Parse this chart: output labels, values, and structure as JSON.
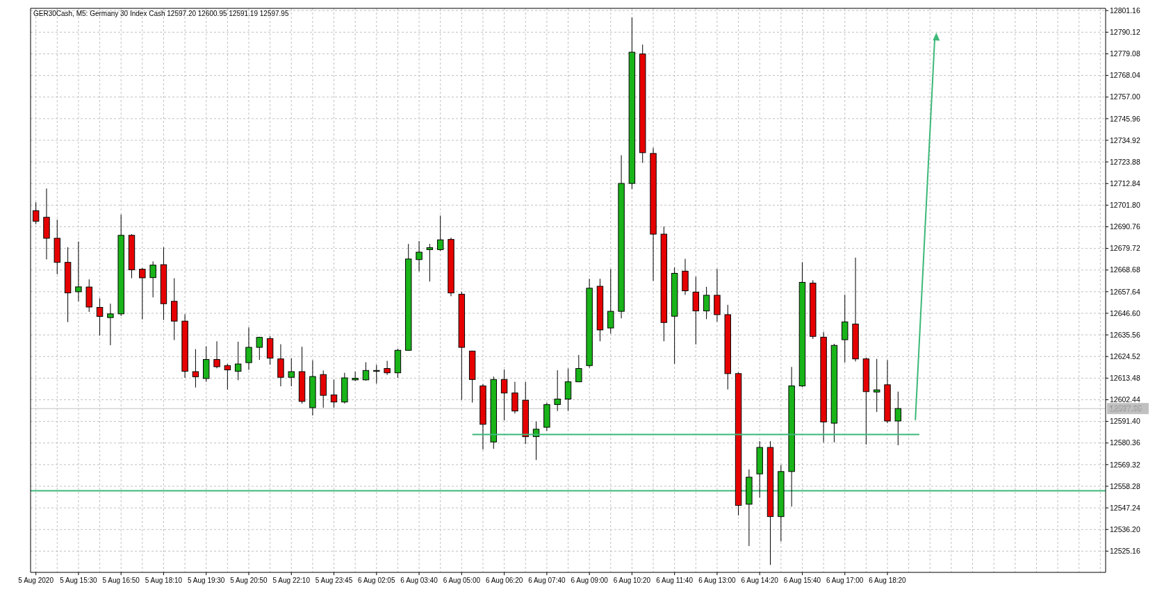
{
  "chart_data": {
    "type": "candlestick",
    "title": "GER30Cash, M5:  Germany 30 Index Cash  12597.20 12600.95 12591.19 12597.95",
    "categories": [
      "5 Aug 2020",
      null,
      null,
      null,
      "5 Aug 15:30",
      null,
      null,
      null,
      "5 Aug 16:50",
      null,
      null,
      null,
      "5 Aug 18:10",
      null,
      null,
      null,
      "5 Aug 19:30",
      null,
      null,
      null,
      "5 Aug 20:50",
      null,
      null,
      null,
      "5 Aug 22:10",
      null,
      null,
      null,
      "5 Aug 23:45",
      null,
      null,
      null,
      "6 Aug 02:05",
      null,
      null,
      null,
      "6 Aug 03:40",
      null,
      null,
      null,
      "6 Aug 05:00",
      null,
      null,
      null,
      "6 Aug 06:20",
      null,
      null,
      null,
      "6 Aug 07:40",
      null,
      null,
      null,
      "6 Aug 09:00",
      null,
      null,
      null,
      "6 Aug 10:20",
      null,
      null,
      null,
      "6 Aug 11:40",
      null,
      null,
      null,
      "6 Aug 13:00",
      null,
      null,
      null,
      "6 Aug 14:20",
      null,
      null,
      null,
      "6 Aug 15:40",
      null,
      null,
      null,
      "6 Aug 17:00",
      null,
      null,
      null,
      "6 Aug 18:20",
      null,
      null,
      null,
      null,
      null,
      null,
      null,
      null,
      null,
      null,
      null,
      null,
      null,
      null,
      null,
      null,
      null,
      null,
      null,
      null
    ],
    "ohlc": [
      [
        12699.0,
        12703.3,
        12692.1,
        12693.6
      ],
      [
        12695.6,
        12710.3,
        12674.1,
        12684.9
      ],
      [
        12684.9,
        12694.4,
        12666.5,
        12672.6
      ],
      [
        12672.6,
        12680.3,
        12642.1,
        12657.0
      ],
      [
        12657.6,
        12683.2,
        12652.7,
        12660.1
      ],
      [
        12660.0,
        12663.9,
        12647.3,
        12649.8
      ],
      [
        12649.6,
        12654.2,
        12635.2,
        12645.0
      ],
      [
        12644.4,
        12651.5,
        12630.3,
        12646.3
      ],
      [
        12646.3,
        12697.0,
        12645.2,
        12686.4
      ],
      [
        12686.4,
        12687.0,
        12664.5,
        12668.8
      ],
      [
        12669.1,
        12669.7,
        12643.5,
        12664.7
      ],
      [
        12664.8,
        12673.1,
        12654.7,
        12671.2
      ],
      [
        12671.4,
        12680.3,
        12643.2,
        12651.5
      ],
      [
        12652.7,
        12664.5,
        12632.9,
        12642.6
      ],
      [
        12642.6,
        12646.1,
        12613.6,
        12617.0
      ],
      [
        12616.8,
        12628.3,
        12608.7,
        12614.2
      ],
      [
        12613.3,
        12629.7,
        12611.6,
        12623.0
      ],
      [
        12623.0,
        12632.3,
        12618.5,
        12619.3
      ],
      [
        12619.9,
        12620.8,
        12607.6,
        12617.7
      ],
      [
        12617.0,
        12632.1,
        12612.4,
        12620.7
      ],
      [
        12621.4,
        12639.4,
        12617.7,
        12629.2
      ],
      [
        12629.2,
        12634.6,
        12622.8,
        12634.3
      ],
      [
        12633.7,
        12635.0,
        12620.3,
        12623.7
      ],
      [
        12623.3,
        12630.8,
        12609.3,
        12613.9
      ],
      [
        12613.9,
        12623.7,
        12609.3,
        12616.8
      ],
      [
        12616.8,
        12629.5,
        12600.5,
        12601.6
      ],
      [
        12598.4,
        12622.6,
        12594.4,
        12614.3
      ],
      [
        12615.3,
        12617.4,
        12598.4,
        12604.7
      ],
      [
        12604.9,
        12612.8,
        12598.4,
        12601.3
      ],
      [
        12601.3,
        12616.2,
        12600.5,
        12613.6
      ],
      [
        12612.6,
        12616.8,
        12612.0,
        12613.4
      ],
      [
        12612.6,
        12621.6,
        12612.2,
        12617.4
      ],
      [
        12617.0,
        12620.3,
        12610.7,
        12617.4
      ],
      [
        12618.4,
        12622.3,
        12615.1,
        12616.2
      ],
      [
        12616.2,
        12628.5,
        12613.6,
        12627.7
      ],
      [
        12627.7,
        12682.0,
        12627.4,
        12674.3
      ],
      [
        12674.0,
        12683.5,
        12668.0,
        12677.8
      ],
      [
        12679.1,
        12682.0,
        12662.8,
        12680.1
      ],
      [
        12679.1,
        12696.5,
        12678.5,
        12684.1
      ],
      [
        12684.3,
        12685.2,
        12655.3,
        12657.0
      ],
      [
        12656.3,
        12657.6,
        12602.4,
        12629.2
      ],
      [
        12627.3,
        12627.5,
        12601.0,
        12612.8
      ],
      [
        12609.5,
        12610.5,
        12577.0,
        12589.9
      ],
      [
        12580.9,
        12614.3,
        12577.4,
        12612.8
      ],
      [
        12612.8,
        12617.9,
        12591.9,
        12605.9
      ],
      [
        12605.9,
        12611.6,
        12595.4,
        12596.7
      ],
      [
        12602.2,
        12611.6,
        12579.8,
        12583.6
      ],
      [
        12583.6,
        12591.3,
        12571.7,
        12587.4
      ],
      [
        12588.4,
        12601.0,
        12586.5,
        12600.0
      ],
      [
        12600.0,
        12617.5,
        12596.7,
        12602.8
      ],
      [
        12602.8,
        12618.4,
        12596.7,
        12611.6
      ],
      [
        12611.6,
        12625.3,
        12611.6,
        12618.4
      ],
      [
        12619.9,
        12664.2,
        12618.8,
        12659.4
      ],
      [
        12660.4,
        12664.2,
        12632.3,
        12638.1
      ],
      [
        12639.1,
        12669.2,
        12636.2,
        12647.6
      ],
      [
        12647.6,
        12727.3,
        12644.0,
        12712.9
      ],
      [
        12712.9,
        12797.6,
        12710.0,
        12779.9
      ],
      [
        12779.0,
        12783.8,
        12723.4,
        12728.6
      ],
      [
        12728.2,
        12731.1,
        12663.1,
        12687.0
      ],
      [
        12687.0,
        12690.9,
        12632.3,
        12641.9
      ],
      [
        12645.1,
        12670.0,
        12620.8,
        12667.0
      ],
      [
        12668.1,
        12674.4,
        12656.0,
        12658.1
      ],
      [
        12657.4,
        12665.3,
        12630.7,
        12647.8
      ],
      [
        12647.8,
        12660.1,
        12643.6,
        12655.8
      ],
      [
        12655.8,
        12669.3,
        12642.3,
        12645.9
      ],
      [
        12645.9,
        12650.9,
        12607.7,
        12615.8
      ],
      [
        12615.8,
        12616.4,
        12543.4,
        12548.5
      ],
      [
        12549.1,
        12566.9,
        12527.8,
        12562.9
      ],
      [
        12564.6,
        12581.3,
        12552.5,
        12578.1
      ],
      [
        12578.1,
        12581.3,
        12518.1,
        12542.8
      ],
      [
        12542.8,
        12569.2,
        12530.1,
        12565.8
      ],
      [
        12565.8,
        12619.2,
        12547.9,
        12609.5
      ],
      [
        12609.5,
        12672.7,
        12608.9,
        12662.4
      ],
      [
        12662.0,
        12663.5,
        12633.5,
        12634.8
      ],
      [
        12634.4,
        12637.1,
        12580.7,
        12591.1
      ],
      [
        12590.5,
        12631.0,
        12580.7,
        12630.2
      ],
      [
        12633.1,
        12656.1,
        12621.5,
        12642.2
      ],
      [
        12641.1,
        12675.0,
        12622.0,
        12623.3
      ],
      [
        12623.3,
        12624.0,
        12579.6,
        12606.6
      ],
      [
        12606.4,
        12623.3,
        12596.2,
        12607.5
      ],
      [
        12610.1,
        12622.7,
        12590.5,
        12591.6
      ],
      [
        12591.6,
        12606.6,
        12579.2,
        12597.95
      ],
      null,
      null,
      null,
      null,
      null,
      null,
      null,
      null,
      null,
      null,
      null,
      null,
      null,
      null,
      null,
      null,
      null,
      null,
      null
    ],
    "colors": [
      "#e60000",
      "#e60000",
      "#e60000",
      "#e60000",
      "#19b419",
      "#e60000",
      "#e60000",
      "#19b419",
      "#19b419",
      "#e60000",
      "#e60000",
      "#19b419",
      "#e60000",
      "#e60000",
      "#e60000",
      "#e60000",
      "#19b419",
      "#e60000",
      "#e60000",
      "#19b419",
      "#19b419",
      "#19b419",
      "#e60000",
      "#e60000",
      "#19b419",
      "#e60000",
      "#19b419",
      "#e60000",
      "#e60000",
      "#19b419",
      "#19b419",
      "#19b419",
      "#19b419",
      "#e60000",
      "#19b419",
      "#19b419",
      "#19b419",
      "#19b419",
      "#19b419",
      "#e60000",
      "#e60000",
      "#e60000",
      "#e60000",
      "#19b419",
      "#e60000",
      "#e60000",
      "#e60000",
      "#19b419",
      "#19b419",
      "#19b419",
      "#19b419",
      "#19b419",
      "#19b419",
      "#e60000",
      "#19b419",
      "#19b419",
      "#19b419",
      "#e60000",
      "#e60000",
      "#e60000",
      "#19b419",
      "#e60000",
      "#e60000",
      "#19b419",
      "#e60000",
      "#e60000",
      "#e60000",
      "#19b419",
      "#19b419",
      "#e60000",
      "#19b419",
      "#19b419",
      "#19b419",
      "#e60000",
      "#e60000",
      "#19b419",
      "#19b419",
      "#e60000",
      "#e60000",
      "#19b419",
      "#e60000",
      "#19b419",
      null,
      null,
      null,
      null,
      null,
      null,
      null,
      null,
      null,
      null,
      null,
      null,
      null,
      null,
      null,
      null,
      null,
      null,
      null
    ],
    "series": [
      {
        "type": "line",
        "color": "#3cb878",
        "values": [
          null,
          null,
          null,
          null,
          null,
          null,
          null,
          null,
          null,
          null,
          null,
          null,
          null,
          null,
          null,
          null,
          null,
          null,
          null,
          null,
          null,
          null,
          null,
          null,
          null,
          null,
          null,
          null,
          null,
          null,
          null,
          null,
          null,
          null,
          null,
          null,
          null,
          null,
          null,
          null,
          null,
          12584.7,
          12584.7,
          12584.7,
          12584.7,
          12584.7,
          12584.7,
          12584.7,
          12584.7,
          12584.7,
          12584.7,
          12584.7,
          12584.7,
          12584.7,
          12584.7,
          12584.7,
          12584.7,
          12584.7,
          12584.7,
          12584.7,
          12584.7,
          12584.7,
          12584.7,
          12584.7,
          12584.7,
          12584.7,
          12584.7,
          12584.7,
          12584.7,
          12584.7,
          12584.7,
          12584.7,
          12584.7,
          12584.7,
          12584.7,
          12584.7,
          12584.7,
          12584.7,
          12584.7,
          12584.7,
          12584.7,
          12584.7,
          12584.7,
          12584.7,
          null,
          null,
          null,
          null,
          null,
          null,
          null,
          null,
          null,
          null,
          null,
          null,
          null,
          null,
          null,
          null,
          null
        ]
      }
    ],
    "ref_lines": [
      {
        "axis": "y",
        "value": 12556,
        "color": "#3cb878"
      },
      {
        "axis": "y",
        "value": 12597.95,
        "label": "12597.95",
        "color": "#c0c0c0"
      }
    ],
    "ylim": [
      12514.3,
      12802.3
    ],
    "yticks": [
      12525.16,
      {
        "value": 12536.2,
        "label": "12536.20"
      },
      12547.24,
      12558.28,
      12569.32,
      12580.36,
      {
        "value": 12591.4,
        "label": "12591.40"
      },
      12602.44,
      12613.48,
      12624.52,
      12635.56,
      {
        "value": 12646.6,
        "label": "12646.60"
      },
      12657.64,
      12668.68,
      12679.72,
      12690.76,
      {
        "value": 12701.8,
        "label": "12701.80"
      },
      12712.84,
      12723.88,
      12734.92,
      12745.96,
      {
        "value": 12757,
        "label": "12757.00"
      },
      12768.04,
      12779.08,
      12790.12,
      12801.16
    ],
    "grid": true
  }
}
